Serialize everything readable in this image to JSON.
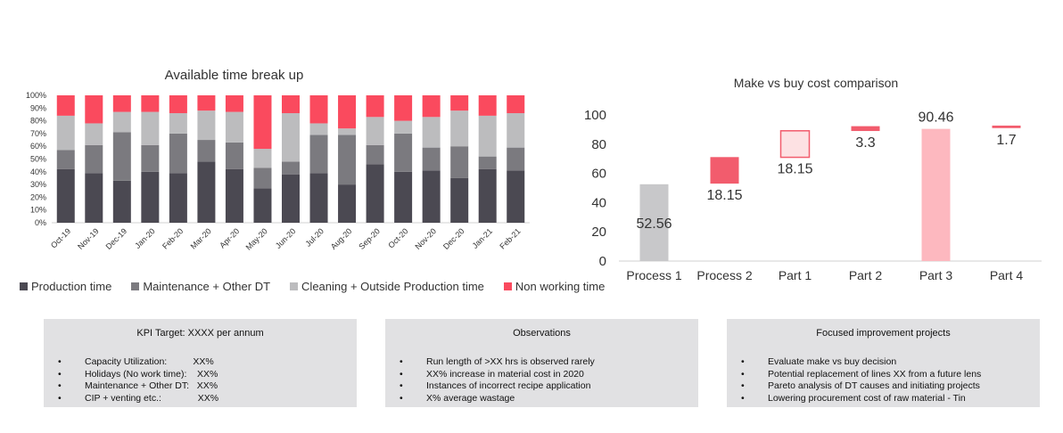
{
  "stack_chart": {
    "title": "Available time break up",
    "y_ticks": [
      "100%",
      "90%",
      "80%",
      "70%",
      "60%",
      "50%",
      "40%",
      "30%",
      "20%",
      "10%",
      "0%"
    ],
    "legend": [
      {
        "label": "Production time",
        "color": "#4b4952"
      },
      {
        "label": "Maintenance + Other DT",
        "color": "#7b7a7f"
      },
      {
        "label": "Cleaning + Outside Production time",
        "color": "#bcbcbe"
      },
      {
        "label": "Non working time",
        "color": "#fa4a5e"
      }
    ]
  },
  "waterfall_chart": {
    "title": "Make vs buy cost comparison",
    "y_ticks": [
      "100",
      "80",
      "60",
      "40",
      "20",
      "0"
    ]
  },
  "chart_data": [
    {
      "type": "bar",
      "stacked": true,
      "title": "Available time break up",
      "categories": [
        "Oct-19",
        "Nov-19",
        "Dec-19",
        "Jan-20",
        "Feb-20",
        "Mar-20",
        "Apr-20",
        "May-20",
        "Jun-20",
        "Jul-20",
        "Aug-20",
        "Sep-20",
        "Oct-20",
        "Nov-20",
        "Dec-20",
        "Jan-21",
        "Feb-21"
      ],
      "ylim": [
        0,
        100
      ],
      "series": [
        {
          "name": "Production time",
          "values": [
            42,
            39,
            33,
            40,
            39,
            48,
            42,
            27,
            38,
            39,
            30,
            46,
            40,
            41,
            35,
            42,
            41
          ]
        },
        {
          "name": "Maintenance + Other DT",
          "values": [
            15,
            22,
            38,
            21,
            31,
            17,
            21,
            16,
            10,
            30,
            39,
            15,
            30,
            18,
            25,
            10,
            18
          ]
        },
        {
          "name": "Cleaning + Outside Production time",
          "values": [
            27,
            17,
            16,
            26,
            16,
            23,
            24,
            15,
            38,
            9,
            5,
            22,
            10,
            24,
            28,
            32,
            27
          ]
        },
        {
          "name": "Non working time",
          "values": [
            16,
            22,
            13,
            13,
            14,
            12,
            13,
            42,
            14,
            22,
            26,
            17,
            20,
            17,
            12,
            16,
            14
          ]
        }
      ]
    },
    {
      "type": "bar",
      "waterfall": true,
      "title": "Make vs buy cost comparison",
      "categories": [
        "Process 1",
        "Process 2",
        "Part 1",
        "Part 2",
        "Part 3",
        "Part 4"
      ],
      "values": [
        52.56,
        18.15,
        18.15,
        3.3,
        90.46,
        1.7
      ],
      "bases": [
        0,
        53,
        71,
        89,
        0,
        91
      ],
      "labels": [
        "52.56",
        "18.15",
        "18.15",
        "3.3",
        "90.46",
        "1.7"
      ],
      "ylim": [
        0,
        100
      ]
    }
  ],
  "panels": {
    "kpi": {
      "title": "KPI Target: XXXX per annum",
      "items": [
        "Capacity Utilization:          XX%",
        "Holidays (No work time):    XX%",
        "Maintenance + Other DT:   XX%",
        "CIP + venting etc.:              XX%"
      ]
    },
    "observations": {
      "title": "Observations",
      "items": [
        "Run length of >XX hrs is observed rarely",
        "XX% increase in material cost in 2020",
        "Instances of incorrect recipe application",
        "X% average wastage"
      ]
    },
    "projects": {
      "title": "Focused improvement projects",
      "items": [
        "Evaluate make vs buy decision",
        "Potential replacement of lines XX from a future lens",
        "Pareto analysis of DT causes and initiating projects",
        "Lowering procurement cost of raw material - Tin"
      ]
    }
  }
}
